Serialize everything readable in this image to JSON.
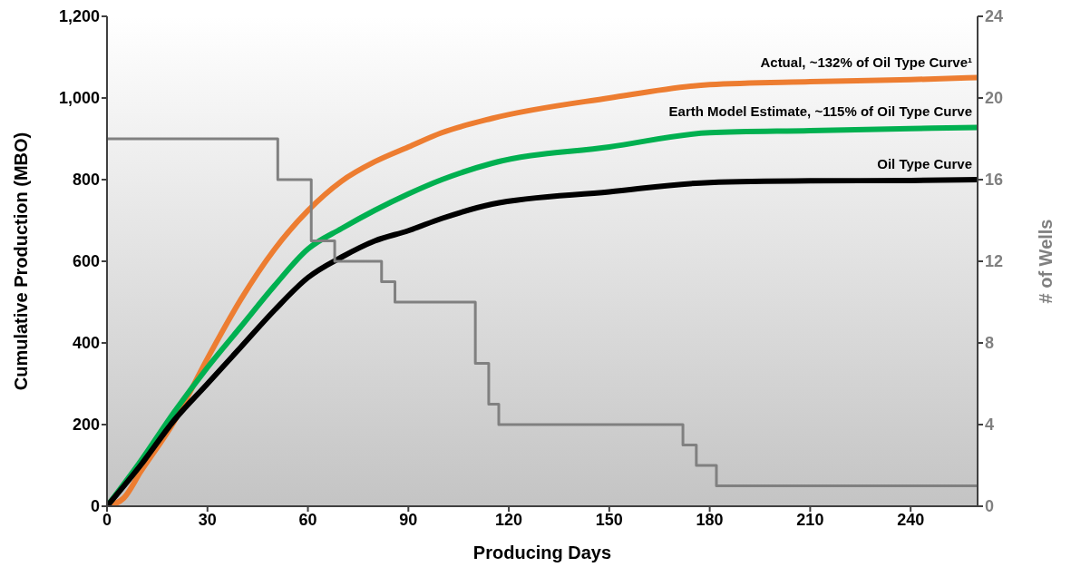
{
  "chart_data": {
    "type": "line",
    "xlabel": "Producing Days",
    "ylabel": "Cumulative Production (MBO)",
    "y2label": "# of Wells",
    "xlim": [
      0,
      260
    ],
    "xticks": [
      0,
      30,
      60,
      90,
      120,
      150,
      180,
      210,
      240
    ],
    "ylim": [
      0,
      1200
    ],
    "yticks": [
      0,
      200,
      400,
      600,
      800,
      {
        "value": 1000,
        "label": "1,000"
      },
      {
        "value": 1200,
        "label": "1,200"
      }
    ],
    "y2lim": [
      0,
      24
    ],
    "y2ticks": [
      0,
      4,
      8,
      12,
      16,
      20,
      24
    ],
    "marker": "none",
    "line_style": "solid",
    "grid": false,
    "series": [
      {
        "name": "Actual, ~132% of Oil Type Curve¹",
        "color": "#ed7d31",
        "x": [
          0,
          5,
          10,
          20,
          30,
          40,
          50,
          60,
          70,
          80,
          90,
          100,
          115,
          150,
          180,
          210,
          240,
          260
        ],
        "values": [
          0,
          20,
          84,
          207,
          362,
          507,
          629,
          724,
          796,
          844,
          880,
          915,
          950,
          1000,
          1033,
          1040,
          1045,
          1050
        ]
      },
      {
        "name": "Earth Model Estimate, ~115% of Oil Type Curve",
        "color": "#00b050",
        "x": [
          0,
          10,
          20,
          30,
          40,
          50,
          60,
          70,
          80,
          90,
          100,
          115,
          150,
          180,
          210,
          240,
          260
        ],
        "values": [
          0,
          110,
          230,
          340,
          440,
          540,
          630,
          680,
          725,
          765,
          800,
          840,
          880,
          915,
          920,
          925,
          928
        ]
      },
      {
        "name": "Oil Type Curve",
        "color": "#000000",
        "x": [
          0,
          10,
          20,
          30,
          40,
          50,
          60,
          70,
          80,
          90,
          100,
          115,
          150,
          180,
          210,
          240,
          260
        ],
        "values": [
          0,
          100,
          210,
          300,
          390,
          480,
          560,
          610,
          650,
          675,
          705,
          740,
          770,
          793,
          797,
          798,
          800
        ]
      },
      {
        "type": "step",
        "axis": "y2",
        "color": "#808080",
        "x": [
          0,
          51,
          61,
          68,
          82,
          86,
          110,
          114,
          117,
          172,
          176,
          182,
          260
        ],
        "values": [
          18,
          16,
          13,
          12,
          11,
          10,
          7,
          5,
          4,
          3,
          2,
          1,
          1
        ]
      }
    ]
  }
}
